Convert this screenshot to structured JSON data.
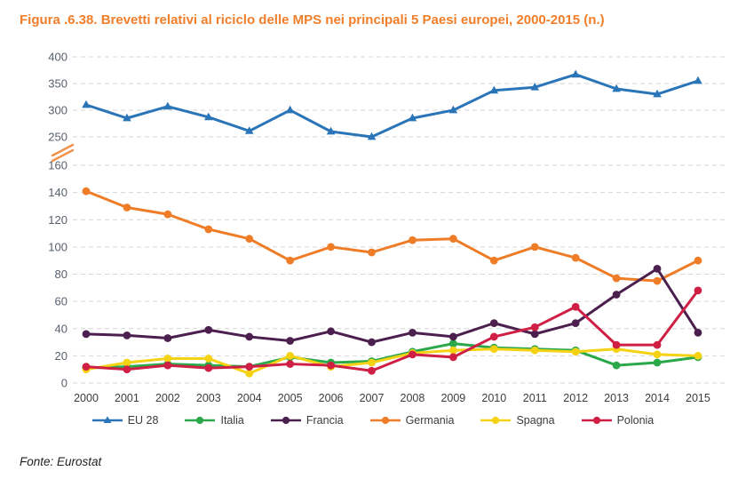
{
  "title": "Figura .6.38. Brevetti relativi al riciclo delle MPS nei principali 5 Paesi europei, 2000-2015 (n.)",
  "source": "Fonte: Eurostat",
  "colors": {
    "title": "#F07E2A",
    "axis_tick_label": "#57606E",
    "x_tick_label": "#3C3C3C",
    "gridline": "#D6D6D6",
    "axis_break_marker": "#F0914C",
    "background": "#FFFFFF"
  },
  "chart_data": {
    "type": "line",
    "title": "Figura .6.38. Brevetti relativi al riciclo delle MPS nei principali 5 Paesi europei, 2000-2015 (n.)",
    "xlabel": "",
    "ylabel": "",
    "grid": "horizontal-dashed",
    "legend_position": "bottom",
    "axis_break_between": [
      160,
      250
    ],
    "y_axis_top": {
      "range": [
        250,
        400
      ],
      "ticks": [
        400,
        350,
        300,
        250
      ]
    },
    "y_axis_bottom": {
      "range": [
        0,
        160
      ],
      "ticks": [
        160,
        140,
        120,
        100,
        80,
        60,
        40,
        20,
        0
      ]
    },
    "categories": [
      "2000",
      "2001",
      "2002",
      "2003",
      "2004",
      "2005",
      "2006",
      "2007",
      "2008",
      "2009",
      "2010",
      "2011",
      "2012",
      "2013",
      "2014",
      "2015"
    ],
    "series": [
      {
        "name": "EU 28",
        "color": "#2A74B8",
        "marker": "triangle",
        "axis": "top",
        "values": [
          310,
          285,
          307,
          287,
          261,
          300,
          260,
          250,
          285,
          300,
          337,
          343,
          367,
          340,
          330,
          355
        ]
      },
      {
        "name": "Italia",
        "color": "#2BA84A",
        "marker": "circle",
        "axis": "bottom",
        "values": [
          11,
          12,
          14,
          13,
          12,
          19,
          15,
          16,
          23,
          29,
          26,
          25,
          24,
          13,
          15,
          19
        ]
      },
      {
        "name": "Francia",
        "color": "#4B1F4E",
        "marker": "circle",
        "axis": "bottom",
        "values": [
          36,
          35,
          33,
          39,
          34,
          31,
          38,
          30,
          37,
          34,
          44,
          36,
          44,
          65,
          84,
          37
        ]
      },
      {
        "name": "Germania",
        "color": "#EF7D28",
        "marker": "circle",
        "axis": "bottom",
        "values": [
          141,
          129,
          124,
          113,
          106,
          90,
          100,
          96,
          105,
          106,
          90,
          100,
          92,
          77,
          75,
          90
        ]
      },
      {
        "name": "Spagna",
        "color": "#F6D214",
        "marker": "circle",
        "axis": "bottom",
        "values": [
          10,
          15,
          18,
          18,
          7,
          20,
          12,
          15,
          22,
          24,
          25,
          24,
          23,
          25,
          21,
          20
        ]
      },
      {
        "name": "Polonia",
        "color": "#CF1F45",
        "marker": "circle",
        "axis": "bottom",
        "values": [
          12,
          10,
          13,
          11,
          12,
          14,
          13,
          9,
          21,
          19,
          34,
          41,
          56,
          28,
          28,
          68
        ]
      }
    ],
    "legend_order": [
      "EU 28",
      "Italia",
      "Francia",
      "Germania",
      "Spagna",
      "Polonia"
    ]
  }
}
